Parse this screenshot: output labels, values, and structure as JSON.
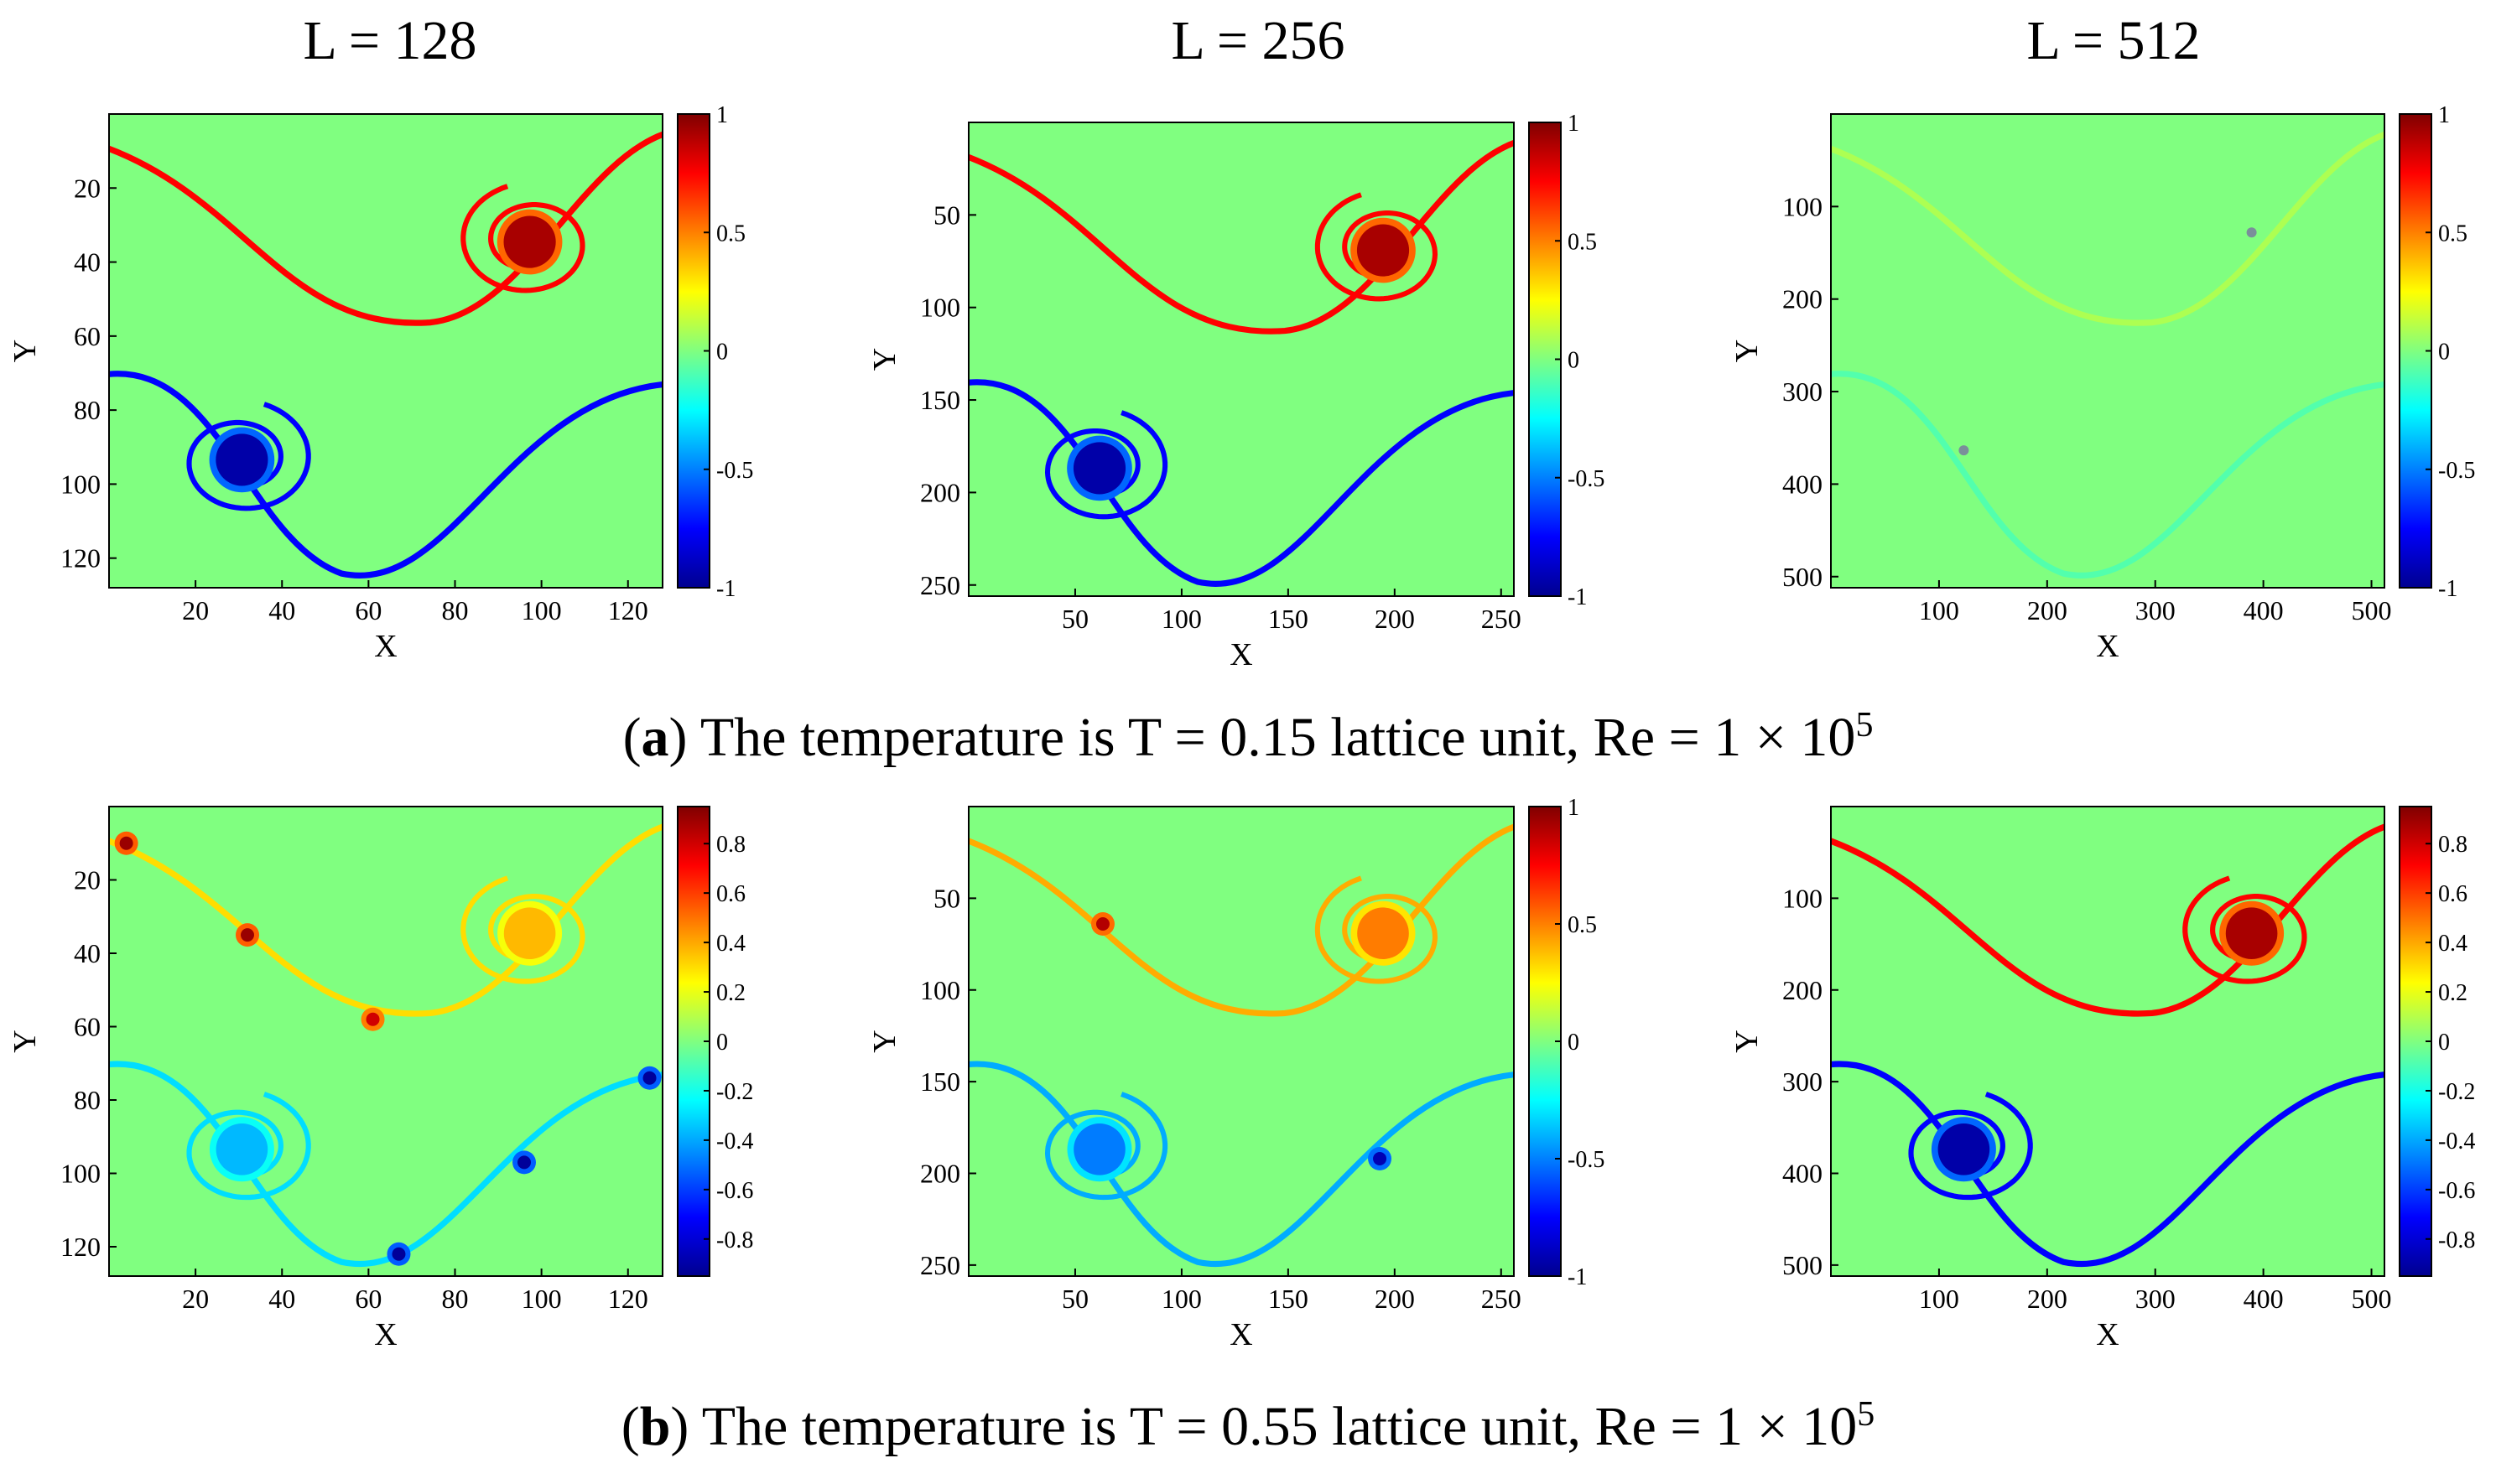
{
  "column_titles": [
    "L = 128",
    "L = 256",
    "L = 512"
  ],
  "captions": [
    {
      "label": "a",
      "text": " The temperature is T = 0.15 lattice unit, Re = 1 × 10",
      "exp": "5"
    },
    {
      "label": "b",
      "text": " The temperature is T = 0.55 lattice unit, Re = 1 × 10",
      "exp": "5"
    }
  ],
  "colormap": "jet",
  "chart_data": [
    {
      "type": "heatmap",
      "id": "a-128",
      "title": "L = 128",
      "xlabel": "X",
      "ylabel": "Y",
      "xlim": [
        0,
        128
      ],
      "ylim": [
        0,
        128
      ],
      "xticks": [
        20,
        40,
        60,
        80,
        100,
        120
      ],
      "yticks": [
        20,
        40,
        60,
        80,
        100,
        120
      ],
      "yaxis": "reversed",
      "clim": [
        -1,
        1
      ],
      "cbar_ticks": [
        1,
        0.5,
        0,
        -0.5,
        -1
      ],
      "cbar_labels": [
        "1",
        "0.5",
        "0",
        "-0.5",
        "-1"
      ],
      "field_amplitude": 1.0,
      "artifacts": []
    },
    {
      "type": "heatmap",
      "id": "a-256",
      "title": "L = 256",
      "xlabel": "X",
      "ylabel": "Y",
      "xlim": [
        0,
        256
      ],
      "ylim": [
        0,
        256
      ],
      "xticks": [
        50,
        100,
        150,
        200,
        250
      ],
      "yticks": [
        50,
        100,
        150,
        200,
        250
      ],
      "yaxis": "reversed",
      "clim": [
        -1,
        1
      ],
      "cbar_ticks": [
        1,
        0.5,
        0,
        -0.5,
        -1
      ],
      "cbar_labels": [
        "1",
        "0.5",
        "0",
        "-0.5",
        "-1"
      ],
      "field_amplitude": 1.0,
      "artifacts": []
    },
    {
      "type": "heatmap",
      "id": "a-512",
      "title": "L = 512",
      "xlabel": "X",
      "ylabel": "Y",
      "xlim": [
        0,
        512
      ],
      "ylim": [
        0,
        512
      ],
      "xticks": [
        100,
        200,
        300,
        400,
        500
      ],
      "yticks": [
        100,
        200,
        300,
        400,
        500
      ],
      "yaxis": "reversed",
      "clim": [
        -1,
        1
      ],
      "cbar_ticks": [
        1,
        0.5,
        0,
        -0.5,
        -1
      ],
      "cbar_labels": [
        "1",
        "0.5",
        "0",
        "-0.5",
        "-1"
      ],
      "field_amplitude": 0.12,
      "artifacts": []
    },
    {
      "type": "heatmap",
      "id": "b-128",
      "title": "",
      "xlabel": "X",
      "ylabel": "Y",
      "xlim": [
        0,
        128
      ],
      "ylim": [
        0,
        128
      ],
      "xticks": [
        20,
        40,
        60,
        80,
        100,
        120
      ],
      "yticks": [
        20,
        40,
        60,
        80,
        100,
        120
      ],
      "yaxis": "reversed",
      "clim": [
        -0.95,
        0.95
      ],
      "cbar_ticks": [
        0.8,
        0.6,
        0.4,
        0.2,
        0,
        -0.2,
        -0.4,
        -0.6,
        -0.8
      ],
      "cbar_labels": [
        "0.8",
        "0.6",
        "0.4",
        "0.2",
        "0",
        "-0.2",
        "-0.4",
        "-0.6",
        "-0.8"
      ],
      "field_amplitude": 0.4,
      "artifacts": [
        {
          "x": 4,
          "y": 10,
          "v": 0.9
        },
        {
          "x": 32,
          "y": 35,
          "v": 0.9
        },
        {
          "x": 61,
          "y": 58,
          "v": 0.8
        },
        {
          "x": 125,
          "y": 74,
          "v": -0.9
        },
        {
          "x": 96,
          "y": 97,
          "v": -0.9
        },
        {
          "x": 67,
          "y": 122,
          "v": -0.9
        }
      ]
    },
    {
      "type": "heatmap",
      "id": "b-256",
      "title": "",
      "xlabel": "X",
      "ylabel": "Y",
      "xlim": [
        0,
        256
      ],
      "ylim": [
        0,
        256
      ],
      "xticks": [
        50,
        100,
        150,
        200,
        250
      ],
      "yticks": [
        50,
        100,
        150,
        200,
        250
      ],
      "yaxis": "reversed",
      "clim": [
        -1,
        1
      ],
      "cbar_ticks": [
        1,
        0.5,
        0,
        -0.5,
        -1
      ],
      "cbar_labels": [
        "1",
        "0.5",
        "0",
        "-0.5",
        "-1"
      ],
      "field_amplitude": 0.55,
      "artifacts": [
        {
          "x": 63,
          "y": 64,
          "v": 0.9
        },
        {
          "x": 193,
          "y": 192,
          "v": -0.9
        }
      ]
    },
    {
      "type": "heatmap",
      "id": "b-512",
      "title": "",
      "xlabel": "X",
      "ylabel": "Y",
      "xlim": [
        0,
        512
      ],
      "ylim": [
        0,
        512
      ],
      "xticks": [
        100,
        200,
        300,
        400,
        500
      ],
      "yticks": [
        100,
        200,
        300,
        400,
        500
      ],
      "yaxis": "reversed",
      "clim": [
        -0.95,
        0.95
      ],
      "cbar_ticks": [
        0.8,
        0.6,
        0.4,
        0.2,
        0,
        -0.2,
        -0.4,
        -0.6,
        -0.8
      ],
      "cbar_labels": [
        "0.8",
        "0.6",
        "0.4",
        "0.2",
        "0",
        "-0.2",
        "-0.4",
        "-0.6",
        "-0.8"
      ],
      "field_amplitude": 0.95,
      "artifacts": []
    }
  ]
}
